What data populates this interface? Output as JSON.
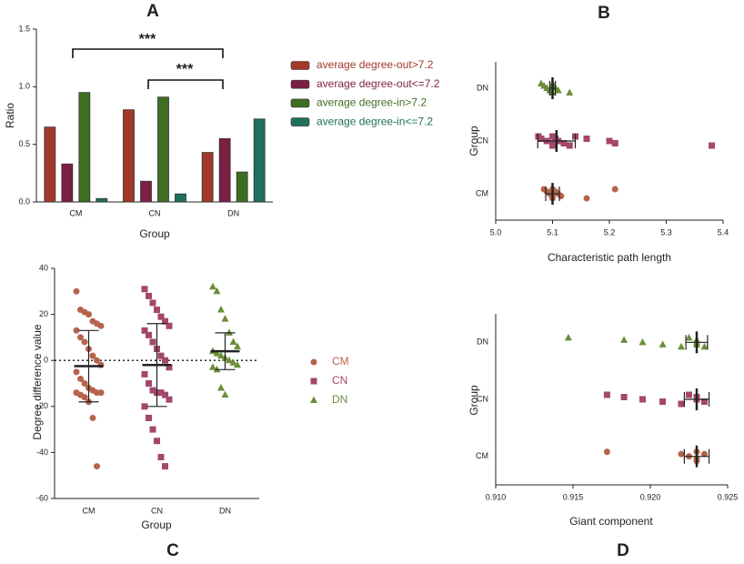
{
  "chart_data": [
    {
      "type": "bar",
      "label": "A",
      "ylabel": "Ratio",
      "xlabel": "Group",
      "categories": [
        "CM",
        "CN",
        "DN"
      ],
      "series": [
        {
          "name": "average degree-out>7.2",
          "color": "#a0392a",
          "values": [
            0.65,
            0.8,
            0.43
          ]
        },
        {
          "name": "average degree-out<=7.2",
          "color": "#7b1f45",
          "values": [
            0.33,
            0.18,
            0.55
          ]
        },
        {
          "name": "average degree-in>7.2",
          "color": "#3f6e22",
          "values": [
            0.95,
            0.91,
            0.26
          ]
        },
        {
          "name": "average degree-in<=7.2",
          "color": "#1e6f5c",
          "values": [
            0.03,
            0.07,
            0.72
          ]
        }
      ],
      "ylim": [
        0,
        1.5
      ],
      "yticks": [
        {
          "value": 0,
          "label": "0.0"
        },
        0.5,
        {
          "value": 1,
          "label": "1.0"
        },
        1.5
      ],
      "annotations": [
        "***",
        "***"
      ]
    },
    {
      "type": "strip",
      "orientation": "horizontal",
      "label": "B",
      "xlabel": "Characteristic path length",
      "ylabel": "Group",
      "categories": [
        "CM",
        "CN",
        "DN"
      ],
      "series": [
        {
          "color": "#b5634a",
          "marker": "circle",
          "values": [
            5.085,
            5.09,
            5.095,
            5.1,
            5.1,
            5.1,
            5.105,
            5.11,
            5.115,
            5.16,
            5.21
          ],
          "mean": 5.1,
          "sd": 0.012
        },
        {
          "color": "#a4476d",
          "marker": "square",
          "values": [
            5.075,
            5.08,
            5.09,
            5.1,
            5.1,
            5.1,
            5.105,
            5.11,
            5.12,
            5.13,
            5.14,
            5.16,
            5.2,
            5.21,
            5.38
          ],
          "mean": 5.107,
          "sd": 0.033
        },
        {
          "color": "#6b8e3a",
          "marker": "triangle",
          "values": [
            5.08,
            5.085,
            5.09,
            5.095,
            5.1,
            5.1,
            5.1,
            5.105,
            5.11,
            5.13
          ],
          "mean": 5.1,
          "sd": 0.005
        }
      ],
      "xlim": [
        5.0,
        5.4
      ],
      "xticks": [
        {
          "value": 5,
          "label": "5.0"
        },
        5.1,
        5.2,
        5.3,
        5.4
      ]
    },
    {
      "type": "strip",
      "orientation": "vertical",
      "label": "C",
      "xlabel": "Group",
      "ylabel": "Degree difference value",
      "categories": [
        "CM",
        "CN",
        "DN"
      ],
      "series": [
        {
          "name": "CM",
          "color": "#b5634a",
          "marker": "circle",
          "values": [
            30,
            22,
            21,
            20,
            17,
            16,
            15,
            13,
            10,
            8,
            5,
            2,
            0,
            -2,
            -5,
            -8,
            -10,
            -12,
            -13,
            -14,
            -14,
            -14,
            -15,
            -16,
            -18,
            -25,
            -46
          ],
          "mean": -2.5,
          "sd": 15.5
        },
        {
          "name": "CN",
          "color": "#a4476d",
          "marker": "square",
          "values": [
            31,
            28,
            25,
            22,
            19,
            17,
            15,
            13,
            11,
            8,
            5,
            2,
            0,
            -3,
            -6,
            -10,
            -13,
            -14,
            -14,
            -15,
            -17,
            -20,
            -25,
            -30,
            -35,
            -42,
            -46
          ],
          "mean": -2,
          "sd": 18
        },
        {
          "name": "DN",
          "color": "#6b8e3a",
          "marker": "triangle",
          "values": [
            32,
            30,
            22,
            18,
            12,
            8,
            6,
            4,
            3,
            2,
            1,
            0,
            -1,
            -2,
            -3,
            -4,
            -12,
            -15
          ],
          "mean": 4,
          "sd": 8
        }
      ],
      "ylim": [
        -60,
        40
      ],
      "yticks": [
        -60,
        -40,
        -20,
        0,
        20,
        40
      ],
      "reference_line": 0,
      "legend": true
    },
    {
      "type": "strip",
      "orientation": "horizontal",
      "label": "D",
      "xlabel": "Giant component",
      "ylabel": "Group",
      "categories": [
        "CM",
        "CN",
        "DN"
      ],
      "series": [
        {
          "color": "#b5634a",
          "marker": "circle",
          "values": [
            0.9172,
            0.922,
            0.9225,
            0.923,
            0.923,
            0.923,
            0.9235
          ],
          "mean": 0.923,
          "sd": 0.0008
        },
        {
          "color": "#a4476d",
          "marker": "square",
          "values": [
            0.9172,
            0.9183,
            0.9195,
            0.9208,
            0.922,
            0.9225,
            0.923,
            0.923,
            0.9235
          ],
          "mean": 0.923,
          "sd": 0.0008
        },
        {
          "color": "#6b8e3a",
          "marker": "triangle",
          "values": [
            0.9147,
            0.9183,
            0.9195,
            0.9208,
            0.922,
            0.9225,
            0.923,
            0.923,
            0.923,
            0.9235
          ],
          "mean": 0.923,
          "sd": 0.0007
        }
      ],
      "xlim": [
        0.91,
        0.925
      ],
      "xticks": [
        {
          "value": 0.91,
          "label": "0.910"
        },
        {
          "value": 0.915,
          "label": "0.915"
        },
        {
          "value": 0.92,
          "label": "0.920"
        },
        {
          "value": 0.925,
          "label": "0.925"
        }
      ]
    }
  ]
}
